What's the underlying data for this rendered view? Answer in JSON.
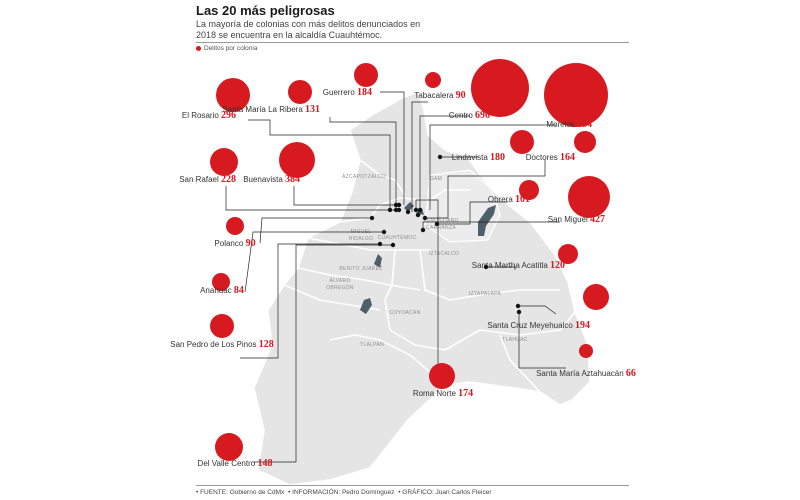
{
  "title": "Las 20 más peligrosas",
  "subtitle": "La mayoría de colonias con más delitos denunciados en 2018 se encuentra en la alcaldía Cuauhtémoc.",
  "legend": {
    "label": "Delitos por colonia",
    "color": "#d71920"
  },
  "footer": {
    "source": "• FUENTE: Gobierno de CdMx",
    "info": "• INFORMACIÓN: Pedro Domínguez",
    "graphic": "• GRÁFICO: Juan Carlos Fleicer"
  },
  "boroughs": [
    "AZCAPOTZALCO",
    "GAM",
    "VENUSTIANO CARRANZA",
    "MIGUEL HIDALGO",
    "CUAUHTÉMOC",
    "BENITO JUÁREZ",
    "IZTACALCO",
    "ÁLVARO OBREGÓN",
    "IZTAPALAPA",
    "COYOACÁN",
    "TLÁHUAC",
    "TLALPAN"
  ],
  "colonias": [
    {
      "name": "El Rosario",
      "value": "296"
    },
    {
      "name": "Guerrero",
      "value": "184"
    },
    {
      "name": "Santa María La Ribera",
      "value": "131"
    },
    {
      "name": "Tabacalera",
      "value": "90"
    },
    {
      "name": "Centro",
      "value": "696"
    },
    {
      "name": "Morelos",
      "value": "684"
    },
    {
      "name": "San Rafael",
      "value": "228"
    },
    {
      "name": "Buenavista",
      "value": "384"
    },
    {
      "name": "Lindavista",
      "value": "180"
    },
    {
      "name": "Doctores",
      "value": "164"
    },
    {
      "name": "Obrera",
      "value": "101"
    },
    {
      "name": "San Miguel",
      "value": "427"
    },
    {
      "name": "Polanco",
      "value": "90"
    },
    {
      "name": "Santa Martha Acatitla",
      "value": "120"
    },
    {
      "name": "Anahuac",
      "value": "84"
    },
    {
      "name": "Santa Cruz Meyehualco",
      "value": "194"
    },
    {
      "name": "San Pedro de Los Pinos",
      "value": "128"
    },
    {
      "name": "Santa María Aztahuacán",
      "value": "66"
    },
    {
      "name": "Roma Norte",
      "value": "174"
    },
    {
      "name": "Del Valle Centro",
      "value": "148"
    }
  ]
}
